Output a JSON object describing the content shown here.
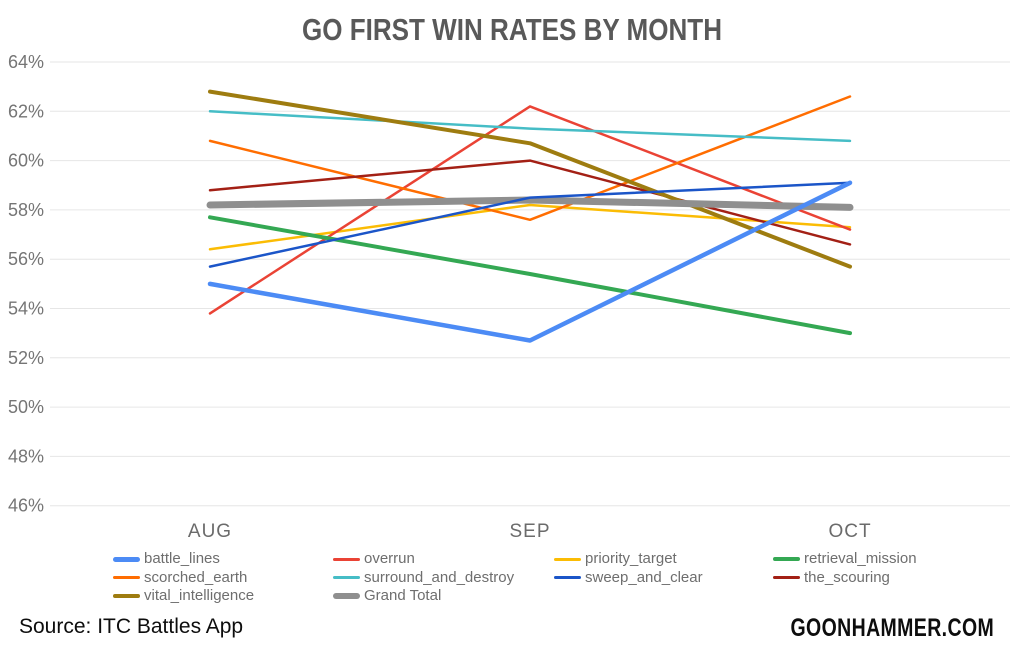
{
  "title": "GO FIRST WIN RATES BY MONTH",
  "source": "Source: ITC Battles App",
  "brand": "GOONHAMMER.COM",
  "colors": {
    "grid": "#e6e6e6",
    "tick_label": "#757575",
    "month_label": "#6b6b6b",
    "title": "#595959",
    "legend_label": "#6e6e6e"
  },
  "chart_data": {
    "type": "line",
    "title": "GO FIRST WIN RATES BY MONTH",
    "xlabel": "",
    "ylabel": "",
    "categories": [
      "AUG",
      "SEP",
      "OCT"
    ],
    "ylim": [
      46,
      64
    ],
    "ytick_step": 2,
    "ytick_suffix": "%",
    "grid": true,
    "legend_position": "bottom",
    "series": [
      {
        "name": "battle_lines",
        "color": "#4c8bf5",
        "line_width": 4.5,
        "values": [
          55.0,
          52.7,
          59.1
        ]
      },
      {
        "name": "overrun",
        "color": "#ea4335",
        "line_width": 2.5,
        "values": [
          53.8,
          62.2,
          57.2
        ]
      },
      {
        "name": "priority_target",
        "color": "#fbbc04",
        "line_width": 2.5,
        "values": [
          56.4,
          58.2,
          57.3
        ]
      },
      {
        "name": "retrieval_mission",
        "color": "#34a853",
        "line_width": 4,
        "values": [
          57.7,
          55.4,
          53.0
        ]
      },
      {
        "name": "scorched_earth",
        "color": "#ff6d01",
        "line_width": 2.5,
        "values": [
          60.8,
          57.6,
          62.6
        ]
      },
      {
        "name": "surround_and_destroy",
        "color": "#46bdc6",
        "line_width": 2.5,
        "values": [
          62.0,
          61.3,
          60.8
        ]
      },
      {
        "name": "sweep_and_clear",
        "color": "#1b55c8",
        "line_width": 2.5,
        "values": [
          55.7,
          58.5,
          59.1
        ]
      },
      {
        "name": "the_scouring",
        "color": "#a32015",
        "line_width": 2.5,
        "values": [
          58.8,
          60.0,
          56.6
        ]
      },
      {
        "name": "vital_intelligence",
        "color": "#9e7c10",
        "line_width": 4,
        "values": [
          62.8,
          60.7,
          55.7
        ]
      },
      {
        "name": "Grand Total",
        "color": "#8f8f8f",
        "line_width": 7,
        "values": [
          58.2,
          58.4,
          58.1
        ]
      }
    ]
  }
}
